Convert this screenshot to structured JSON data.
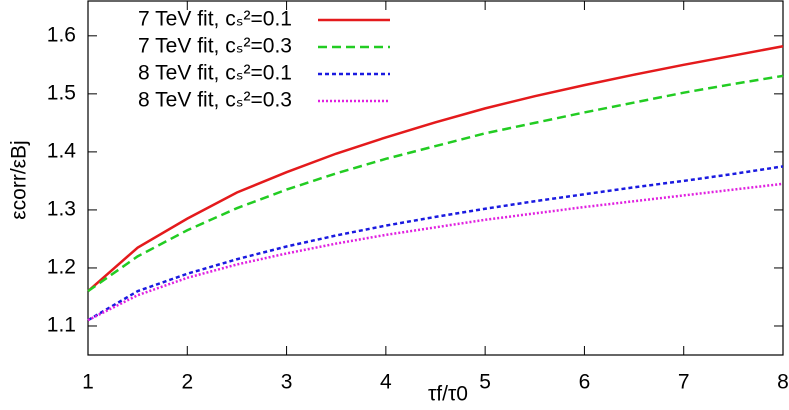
{
  "chart_data": {
    "type": "line",
    "xlabel": "τf/τ0",
    "ylabel": "εcorr/εBj",
    "x": [
      1,
      1.5,
      2,
      2.5,
      3,
      3.5,
      4,
      4.5,
      5,
      5.5,
      6,
      6.5,
      7,
      7.5,
      8
    ],
    "series": [
      {
        "name": "7 TeV fit, cₛ²=0.1",
        "color": "#e41a1c",
        "dash": "solid",
        "values": [
          1.16,
          1.235,
          1.285,
          1.33,
          1.365,
          1.397,
          1.425,
          1.451,
          1.475,
          1.496,
          1.515,
          1.533,
          1.55,
          1.566,
          1.582
        ]
      },
      {
        "name": "7 TeV fit, cₛ²=0.3",
        "color": "#22cc22",
        "dash": "dashed",
        "values": [
          1.16,
          1.22,
          1.265,
          1.303,
          1.335,
          1.363,
          1.388,
          1.41,
          1.432,
          1.45,
          1.468,
          1.485,
          1.502,
          1.517,
          1.531
        ]
      },
      {
        "name": "8 TeV fit, cₛ²=0.1",
        "color": "#1a1ae0",
        "dash": "dotted",
        "values": [
          1.11,
          1.16,
          1.19,
          1.215,
          1.237,
          1.256,
          1.273,
          1.288,
          1.302,
          1.315,
          1.327,
          1.339,
          1.35,
          1.362,
          1.375
        ]
      },
      {
        "name": "8 TeV fit, cₛ²=0.3",
        "color": "#e020e0",
        "dash": "finedotted",
        "values": [
          1.11,
          1.153,
          1.183,
          1.206,
          1.225,
          1.242,
          1.257,
          1.27,
          1.283,
          1.294,
          1.305,
          1.315,
          1.325,
          1.335,
          1.345
        ]
      }
    ],
    "xlim": [
      1,
      8
    ],
    "xticks": [
      1,
      2,
      3,
      4,
      5,
      6,
      7,
      8
    ],
    "ylim": [
      1.05,
      1.66
    ],
    "yticks": [
      1.1,
      1.2,
      1.3,
      1.4,
      1.5,
      1.6
    ],
    "grid": false,
    "legend": "upper left"
  }
}
